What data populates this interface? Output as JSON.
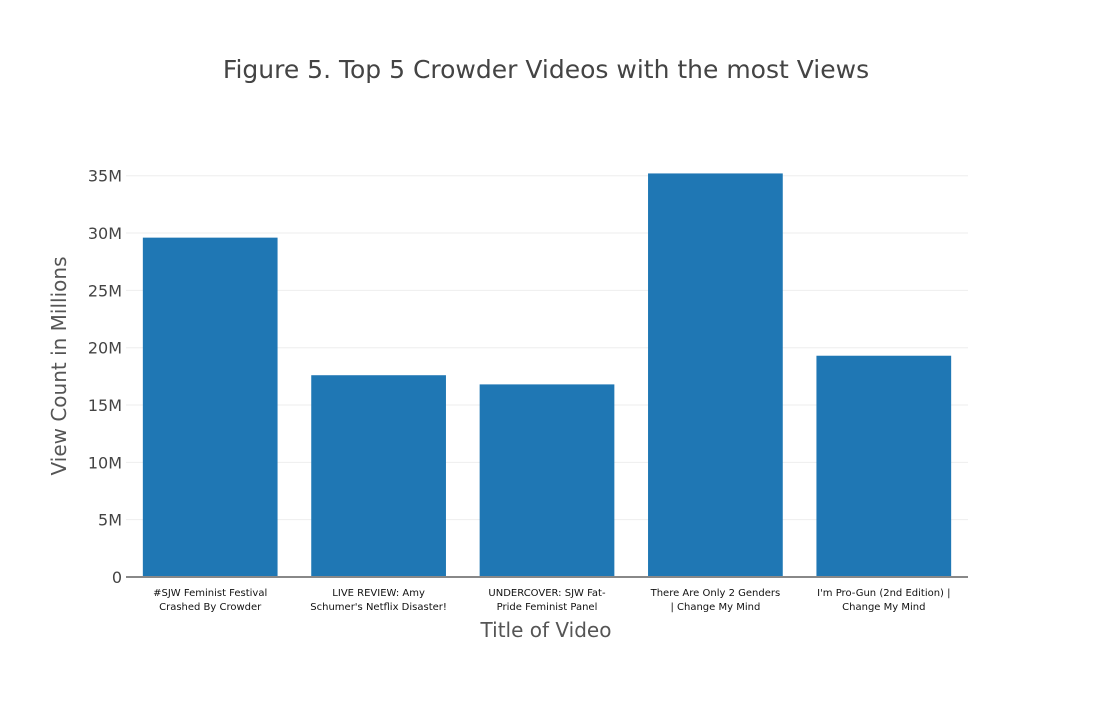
{
  "chart_data": {
    "type": "bar",
    "title": "Figure 5. Top 5 Crowder Videos with the most Views",
    "xlabel": "Title of Video",
    "ylabel": "View Count in Millions",
    "ylim": [
      0,
      35.5
    ],
    "y_ticks": [
      0,
      5,
      10,
      15,
      20,
      25,
      30,
      35
    ],
    "y_tick_labels": [
      "0",
      "5M",
      "10M",
      "15M",
      "20M",
      "25M",
      "30M",
      "35M"
    ],
    "grid": true,
    "categories": [
      [
        "#SJW Feminist Festival",
        "Crashed By Crowder"
      ],
      [
        "LIVE REVIEW: Amy",
        "Schumer's Netflix Disaster!"
      ],
      [
        "UNDERCOVER: SJW Fat-",
        "Pride Feminist Panel"
      ],
      [
        "There Are Only 2 Genders",
        "| Change My Mind"
      ],
      [
        "I'm Pro-Gun (2nd Edition) |",
        "Change My Mind"
      ]
    ],
    "values": [
      29.6,
      17.6,
      16.8,
      35.2,
      19.3
    ],
    "bar_color": "#1f77b4",
    "grid_color": "#eeeeee",
    "axis_color": "#888888"
  }
}
